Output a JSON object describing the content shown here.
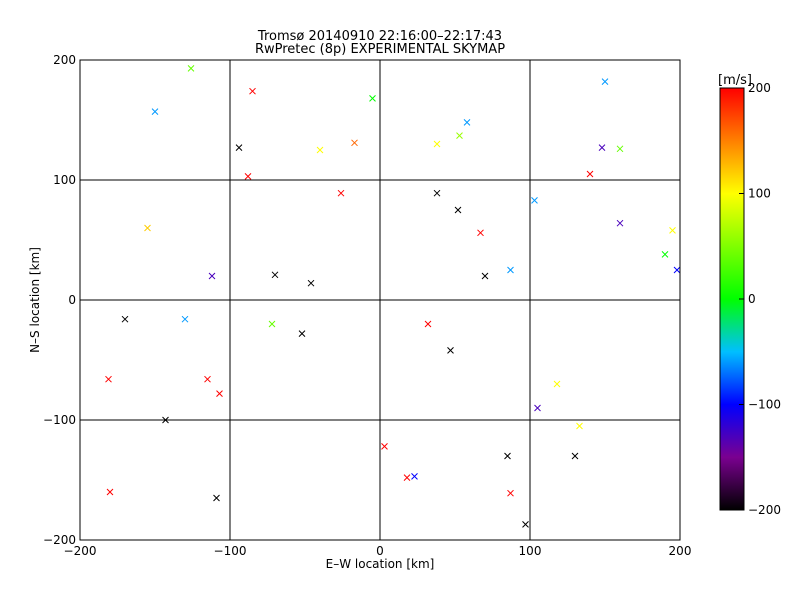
{
  "chart_data": {
    "type": "scatter",
    "title": "Tromsø 20140910 22:16:00–22:17:43",
    "subtitle": "RwPretec (8p) EXPERIMENTAL SKYMAP",
    "xlabel": "E–W location [km]",
    "ylabel": "N–S location [km]",
    "xlim": [
      -200,
      200
    ],
    "ylim": [
      -200,
      200
    ],
    "xticks": [
      -200,
      -100,
      0,
      100,
      200
    ],
    "yticks": [
      -200,
      -100,
      0,
      100,
      200
    ],
    "xtick_labels": [
      "−200",
      "−100",
      "0",
      "100",
      "200"
    ],
    "ytick_labels": [
      "−200",
      "−100",
      "0",
      "100",
      "200"
    ],
    "grid": true,
    "colorbar": {
      "label": "[m/s]",
      "range": [
        -200,
        200
      ],
      "ticks": [
        200,
        100,
        0,
        -100,
        -200
      ],
      "tick_labels": [
        "200",
        "100",
        "0",
        "−100",
        "−200"
      ],
      "stops": [
        {
          "v": -200,
          "color": "#000000"
        },
        {
          "v": -150,
          "color": "#7a0090"
        },
        {
          "v": -100,
          "color": "#0000ff"
        },
        {
          "v": -50,
          "color": "#00bfff"
        },
        {
          "v": 0,
          "color": "#00ff00"
        },
        {
          "v": 100,
          "color": "#ffff00"
        },
        {
          "v": 150,
          "color": "#ff8000"
        },
        {
          "v": 200,
          "color": "#ff0000"
        }
      ]
    },
    "markers": {
      "small": "dot",
      "large": "cross"
    },
    "series": [
      {
        "values": [
          {
            "x": -150,
            "y": 157,
            "v": -60,
            "m": "x"
          },
          {
            "x": -126,
            "y": 193,
            "v": 40,
            "m": "x"
          },
          {
            "x": -85,
            "y": 174,
            "v": 200,
            "m": "x"
          },
          {
            "x": -94,
            "y": 127,
            "v": -200,
            "m": "x"
          },
          {
            "x": -40,
            "y": 125,
            "v": 100,
            "m": "x"
          },
          {
            "x": -17,
            "y": 131,
            "v": 160,
            "m": "x"
          },
          {
            "x": -5,
            "y": 168,
            "v": 0,
            "m": "x"
          },
          {
            "x": 38,
            "y": 130,
            "v": 100,
            "m": "x"
          },
          {
            "x": 53,
            "y": 137,
            "v": 60,
            "m": "x"
          },
          {
            "x": 58,
            "y": 148,
            "v": -60,
            "m": "x"
          },
          {
            "x": 150,
            "y": 182,
            "v": -60,
            "m": "x"
          },
          {
            "x": 140,
            "y": 105,
            "v": 200,
            "m": "x"
          },
          {
            "x": 148,
            "y": 127,
            "v": -130,
            "m": "x"
          },
          {
            "x": 160,
            "y": 126,
            "v": 40,
            "m": "x"
          },
          {
            "x": -88,
            "y": 103,
            "v": 200,
            "m": "x"
          },
          {
            "x": -26,
            "y": 89,
            "v": 200,
            "m": "x"
          },
          {
            "x": 38,
            "y": 89,
            "v": -200,
            "m": "x"
          },
          {
            "x": 103,
            "y": 83,
            "v": -60,
            "m": "x"
          },
          {
            "x": 160,
            "y": 64,
            "v": -130,
            "m": "x"
          },
          {
            "x": 195,
            "y": 58,
            "v": 100,
            "m": "x"
          },
          {
            "x": 190,
            "y": 38,
            "v": 0,
            "m": "x"
          },
          {
            "x": 198,
            "y": 25,
            "v": -100,
            "m": "x"
          },
          {
            "x": -155,
            "y": 60,
            "v": 120,
            "m": "x"
          },
          {
            "x": -112,
            "y": 20,
            "v": -130,
            "m": "x"
          },
          {
            "x": -130,
            "y": -16,
            "v": -60,
            "m": "x"
          },
          {
            "x": -170,
            "y": -16,
            "v": -200,
            "m": "x"
          },
          {
            "x": -181,
            "y": -66,
            "v": 200,
            "m": "x"
          },
          {
            "x": -115,
            "y": -66,
            "v": 200,
            "m": "x"
          },
          {
            "x": -107,
            "y": -78,
            "v": 200,
            "m": "x"
          },
          {
            "x": -143,
            "y": -100,
            "v": -200,
            "m": "x"
          },
          {
            "x": -109,
            "y": -165,
            "v": -200,
            "m": "x"
          },
          {
            "x": -180,
            "y": -160,
            "v": 200,
            "m": "x"
          },
          {
            "x": -72,
            "y": -20,
            "v": 40,
            "m": "x"
          },
          {
            "x": -70,
            "y": 21,
            "v": -200,
            "m": "x"
          },
          {
            "x": -46,
            "y": 14,
            "v": -200,
            "m": "x"
          },
          {
            "x": -52,
            "y": -28,
            "v": -200,
            "m": "x"
          },
          {
            "x": 3,
            "y": -122,
            "v": 200,
            "m": "x"
          },
          {
            "x": 23,
            "y": -147,
            "v": -100,
            "m": "x"
          },
          {
            "x": 18,
            "y": -148,
            "v": 200,
            "m": "x"
          },
          {
            "x": 85,
            "y": -130,
            "v": -200,
            "m": "x"
          },
          {
            "x": 87,
            "y": -161,
            "v": 200,
            "m": "x"
          },
          {
            "x": 97,
            "y": -187,
            "v": -200,
            "m": "x"
          },
          {
            "x": 130,
            "y": -130,
            "v": -200,
            "m": "x"
          },
          {
            "x": 133,
            "y": -105,
            "v": 100,
            "m": "x"
          },
          {
            "x": 105,
            "y": -90,
            "v": -130,
            "m": "x"
          },
          {
            "x": 118,
            "y": -70,
            "v": 100,
            "m": "x"
          },
          {
            "x": 52,
            "y": 75,
            "v": -200,
            "m": "x"
          },
          {
            "x": 67,
            "y": 56,
            "v": 200,
            "m": "x"
          },
          {
            "x": 87,
            "y": 25,
            "v": -60,
            "m": "x"
          },
          {
            "x": 70,
            "y": 20,
            "v": -200,
            "m": "x"
          },
          {
            "x": 32,
            "y": -20,
            "v": 200,
            "m": "x"
          },
          {
            "x": 47,
            "y": -42,
            "v": -200,
            "m": "x"
          }
        ]
      }
    ]
  }
}
